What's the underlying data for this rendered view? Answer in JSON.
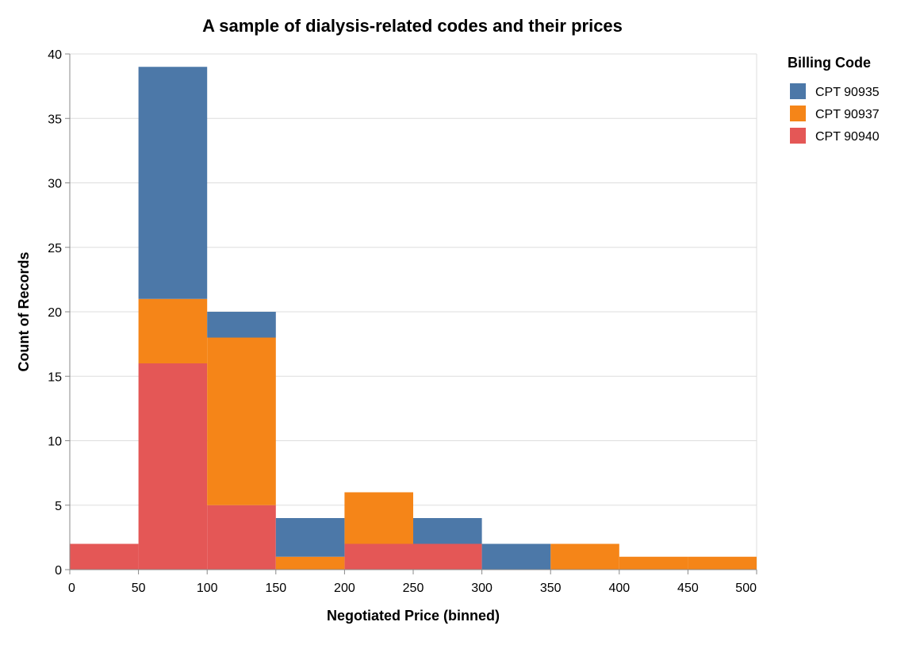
{
  "chart_data": {
    "type": "bar",
    "stacked": true,
    "title": "A sample of dialysis-related codes and their prices",
    "xlabel": "Negotiated Price (binned)",
    "ylabel": "Count of Records",
    "xlim": [
      0,
      500
    ],
    "ylim": [
      0,
      40
    ],
    "x_ticks": [
      0,
      50,
      100,
      150,
      200,
      250,
      300,
      350,
      400,
      450,
      500
    ],
    "y_ticks": [
      0,
      5,
      10,
      15,
      20,
      25,
      30,
      35,
      40
    ],
    "grid": "horizontal",
    "bins": [
      [
        0,
        50
      ],
      [
        50,
        100
      ],
      [
        100,
        150
      ],
      [
        150,
        200
      ],
      [
        200,
        250
      ],
      [
        250,
        300
      ],
      [
        300,
        350
      ],
      [
        350,
        400
      ],
      [
        400,
        450
      ],
      [
        450,
        500
      ]
    ],
    "legend": {
      "title": "Billing Code",
      "placement": "right"
    },
    "series": [
      {
        "name": "CPT 90940",
        "color": "#e45756",
        "values": [
          2,
          16,
          5,
          0,
          2,
          2,
          0,
          0,
          0,
          0
        ]
      },
      {
        "name": "CPT 90937",
        "color": "#f58518",
        "values": [
          0,
          5,
          13,
          1,
          4,
          0,
          0,
          2,
          1,
          1
        ]
      },
      {
        "name": "CPT 90935",
        "color": "#4c78a8",
        "values": [
          0,
          18,
          2,
          3,
          0,
          2,
          2,
          0,
          0,
          0
        ]
      }
    ],
    "legend_order": [
      "CPT 90935",
      "CPT 90937",
      "CPT 90940"
    ]
  }
}
